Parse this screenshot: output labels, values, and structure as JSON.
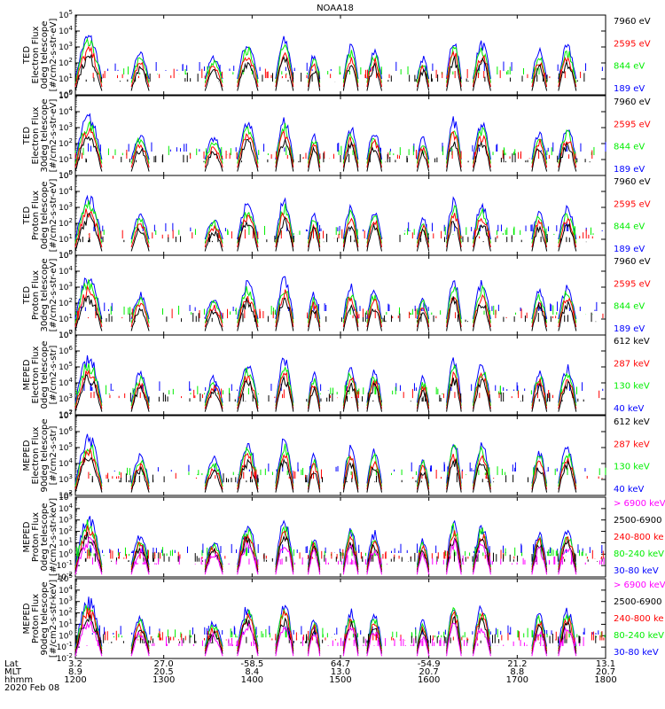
{
  "chart_data": {
    "type": "line",
    "title": "NOAA18",
    "date": "2020 Feb 08",
    "colors": {
      "blue": "#0000ff",
      "red": "#ff0000",
      "green": "#00ee00",
      "black": "#000000",
      "magenta": "#ff00ff"
    },
    "panels": [
      {
        "ylabel": [
          "TED",
          "Electron Flux",
          "0deg telescope",
          "[#/cm2-s-str-eV]"
        ],
        "ymin_exp": 0,
        "ymax_exp": 5,
        "tick_labels": [
          "10^0",
          "10^1",
          "10^2",
          "10^3",
          "10^4",
          "10^5"
        ],
        "legend": [
          {
            "label": "7960 eV",
            "color": "black"
          },
          {
            "label": "2595 eV",
            "color": "red"
          },
          {
            "label": "844 eV",
            "color": "green"
          },
          {
            "label": "189 eV",
            "color": "blue"
          }
        ]
      },
      {
        "ylabel": [
          "TED",
          "Electron Flux",
          "30deg telescope",
          "[#/cm2-s-str-eV]"
        ],
        "ymin_exp": 0,
        "ymax_exp": 5,
        "tick_labels": [
          "10^0",
          "10^1",
          "10^2",
          "10^3",
          "10^4",
          "10^5"
        ],
        "legend": [
          {
            "label": "7960 eV",
            "color": "black"
          },
          {
            "label": "2595 eV",
            "color": "red"
          },
          {
            "label": "844 eV",
            "color": "green"
          },
          {
            "label": "189 eV",
            "color": "blue"
          }
        ]
      },
      {
        "ylabel": [
          "TED",
          "Proton Flux",
          "0deg telescope",
          "[#/cm2-s-str-eV]"
        ],
        "ymin_exp": 0,
        "ymax_exp": 5,
        "tick_labels": [
          "10^0",
          "10^1",
          "10^2",
          "10^3",
          "10^4",
          "10^5"
        ],
        "legend": [
          {
            "label": "7960 eV",
            "color": "black"
          },
          {
            "label": "2595 eV",
            "color": "red"
          },
          {
            "label": "844 eV",
            "color": "green"
          },
          {
            "label": "189 eV",
            "color": "blue"
          }
        ]
      },
      {
        "ylabel": [
          "TED",
          "Proton Flux",
          "30deg telescope",
          "[#/cm2-s-str-eV]"
        ],
        "ymin_exp": 0,
        "ymax_exp": 5,
        "tick_labels": [
          "10^0",
          "10^1",
          "10^2",
          "10^3",
          "10^4",
          "10^5"
        ],
        "legend": [
          {
            "label": "7960 eV",
            "color": "black"
          },
          {
            "label": "2595 eV",
            "color": "red"
          },
          {
            "label": "844 eV",
            "color": "green"
          },
          {
            "label": "189 eV",
            "color": "blue"
          }
        ]
      },
      {
        "ylabel": [
          "MEPED",
          "Electron Flux",
          "0deg telescope",
          "[#/cm2-s-str]"
        ],
        "ymin_exp": 2,
        "ymax_exp": 7,
        "tick_labels": [
          "10^2",
          "10^3",
          "10^4",
          "10^5",
          "10^6",
          "10^7"
        ],
        "legend": [
          {
            "label": "612 keV",
            "color": "black"
          },
          {
            "label": "287 keV",
            "color": "red"
          },
          {
            "label": "130 keV",
            "color": "green"
          },
          {
            "label": "40 keV",
            "color": "blue"
          }
        ]
      },
      {
        "ylabel": [
          "MEPED",
          "Electron Flux",
          "90deg telescope",
          "[#/cm2-s-str]"
        ],
        "ymin_exp": 2,
        "ymax_exp": 7,
        "tick_labels": [
          "10^2",
          "10^3",
          "10^4",
          "10^5",
          "10^6",
          "10^7"
        ],
        "legend": [
          {
            "label": "612 keV",
            "color": "black"
          },
          {
            "label": "287 keV",
            "color": "red"
          },
          {
            "label": "130 keV",
            "color": "green"
          },
          {
            "label": "40 keV",
            "color": "blue"
          }
        ]
      },
      {
        "ylabel": [
          "MEPED",
          "Proton Flux",
          "0deg telescope",
          "[#/cm2-s-str-keV]"
        ],
        "ymin_exp": -2,
        "ymax_exp": 5,
        "tick_labels": [
          "10^-2",
          "10^-1",
          "10^0",
          "10^1",
          "10^2",
          "10^3",
          "10^4",
          "10^5"
        ],
        "legend": [
          {
            "label": "> 6900 keV",
            "color": "magenta"
          },
          {
            "label": "2500-6900",
            "color": "black"
          },
          {
            "label": "240-800 ke",
            "color": "red"
          },
          {
            "label": "80-240 keV",
            "color": "green"
          },
          {
            "label": "30-80 keV",
            "color": "blue"
          }
        ]
      },
      {
        "ylabel": [
          "MEPED",
          "Proton Flux",
          "90deg telescope",
          "[#/cm2-s-str-keV]"
        ],
        "ymin_exp": -2,
        "ymax_exp": 5,
        "tick_labels": [
          "10^-2",
          "10^-1",
          "10^0",
          "10^1",
          "10^2",
          "10^3",
          "10^4",
          "10^5"
        ],
        "legend": [
          {
            "label": "> 6900 keV",
            "color": "magenta"
          },
          {
            "label": "2500-6900",
            "color": "black"
          },
          {
            "label": "240-800 ke",
            "color": "red"
          },
          {
            "label": "80-240 keV",
            "color": "green"
          },
          {
            "label": "30-80 keV",
            "color": "blue"
          }
        ]
      }
    ],
    "x_axis": {
      "row_labels": [
        "Lat",
        "MLT",
        "hhmm"
      ],
      "ticks": [
        {
          "lat": "3.2",
          "mlt": "8.9",
          "hhmm": "1200"
        },
        {
          "lat": "27.0",
          "mlt": "20.5",
          "hhmm": "1300"
        },
        {
          "lat": "-58.5",
          "mlt": "8.4",
          "hhmm": "1400"
        },
        {
          "lat": "64.7",
          "mlt": "13.0",
          "hhmm": "1500"
        },
        {
          "lat": "-54.9",
          "mlt": "20.7",
          "hhmm": "1600"
        },
        {
          "lat": "21.2",
          "mlt": "8.8",
          "hhmm": "1700"
        },
        {
          "lat": "13.1",
          "mlt": "20.7",
          "hhmm": "1800"
        }
      ],
      "xmin_minutes": 0,
      "xmax_minutes": 360
    },
    "passes_minutes": [
      {
        "start": 0,
        "end": 18,
        "peak": 0.8
      },
      {
        "start": 38,
        "end": 50,
        "peak": 0.55
      },
      {
        "start": 88,
        "end": 100,
        "peak": 0.5
      },
      {
        "start": 110,
        "end": 124,
        "peak": 0.7
      },
      {
        "start": 136,
        "end": 148,
        "peak": 0.75
      },
      {
        "start": 158,
        "end": 166,
        "peak": 0.55
      },
      {
        "start": 182,
        "end": 192,
        "peak": 0.65
      },
      {
        "start": 198,
        "end": 208,
        "peak": 0.6
      },
      {
        "start": 232,
        "end": 240,
        "peak": 0.5
      },
      {
        "start": 252,
        "end": 262,
        "peak": 0.75
      },
      {
        "start": 270,
        "end": 282,
        "peak": 0.7
      },
      {
        "start": 310,
        "end": 320,
        "peak": 0.6
      },
      {
        "start": 328,
        "end": 340,
        "peak": 0.65
      }
    ]
  }
}
